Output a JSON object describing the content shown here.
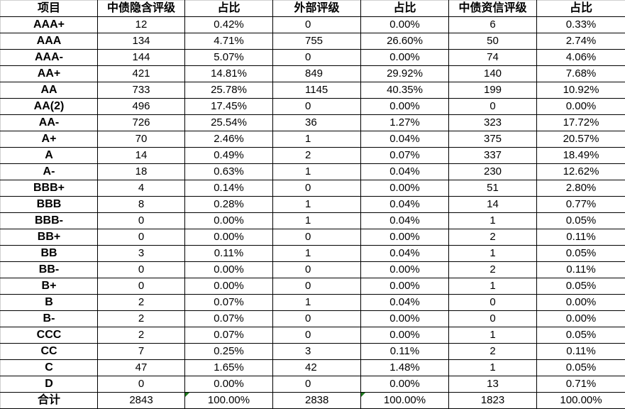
{
  "table": {
    "headers": [
      "项目",
      "中债隐含评级",
      "占比",
      "外部评级",
      "占比",
      "中债资信评级",
      "占比"
    ],
    "rows": [
      [
        "AAA+",
        "12",
        "0.42%",
        "0",
        "0.00%",
        "6",
        "0.33%"
      ],
      [
        "AAA",
        "134",
        "4.71%",
        "755",
        "26.60%",
        "50",
        "2.74%"
      ],
      [
        "AAA-",
        "144",
        "5.07%",
        "0",
        "0.00%",
        "74",
        "4.06%"
      ],
      [
        "AA+",
        "421",
        "14.81%",
        "849",
        "29.92%",
        "140",
        "7.68%"
      ],
      [
        "AA",
        "733",
        "25.78%",
        "1145",
        "40.35%",
        "199",
        "10.92%"
      ],
      [
        "AA(2)",
        "496",
        "17.45%",
        "0",
        "0.00%",
        "0",
        "0.00%"
      ],
      [
        "AA-",
        "726",
        "25.54%",
        "36",
        "1.27%",
        "323",
        "17.72%"
      ],
      [
        "A+",
        "70",
        "2.46%",
        "1",
        "0.04%",
        "375",
        "20.57%"
      ],
      [
        "A",
        "14",
        "0.49%",
        "2",
        "0.07%",
        "337",
        "18.49%"
      ],
      [
        "A-",
        "18",
        "0.63%",
        "1",
        "0.04%",
        "230",
        "12.62%"
      ],
      [
        "BBB+",
        "4",
        "0.14%",
        "0",
        "0.00%",
        "51",
        "2.80%"
      ],
      [
        "BBB",
        "8",
        "0.28%",
        "1",
        "0.04%",
        "14",
        "0.77%"
      ],
      [
        "BBB-",
        "0",
        "0.00%",
        "1",
        "0.04%",
        "1",
        "0.05%"
      ],
      [
        "BB+",
        "0",
        "0.00%",
        "0",
        "0.00%",
        "2",
        "0.11%"
      ],
      [
        "BB",
        "3",
        "0.11%",
        "1",
        "0.04%",
        "1",
        "0.05%"
      ],
      [
        "BB-",
        "0",
        "0.00%",
        "0",
        "0.00%",
        "2",
        "0.11%"
      ],
      [
        "B+",
        "0",
        "0.00%",
        "0",
        "0.00%",
        "1",
        "0.05%"
      ],
      [
        "B",
        "2",
        "0.07%",
        "1",
        "0.04%",
        "0",
        "0.00%"
      ],
      [
        "B-",
        "2",
        "0.07%",
        "0",
        "0.00%",
        "0",
        "0.00%"
      ],
      [
        "CCC",
        "2",
        "0.07%",
        "0",
        "0.00%",
        "1",
        "0.05%"
      ],
      [
        "CC",
        "7",
        "0.25%",
        "3",
        "0.11%",
        "2",
        "0.11%"
      ],
      [
        "C",
        "47",
        "1.65%",
        "42",
        "1.48%",
        "1",
        "0.05%"
      ],
      [
        "D",
        "0",
        "0.00%",
        "0",
        "0.00%",
        "13",
        "0.71%"
      ]
    ],
    "total": [
      "合计",
      "2843",
      "100.00%",
      "2838",
      "100.00%",
      "1823",
      "100.00%"
    ]
  },
  "colors": {
    "grid": "#000000",
    "error_indicator": "#1e7a1e"
  }
}
